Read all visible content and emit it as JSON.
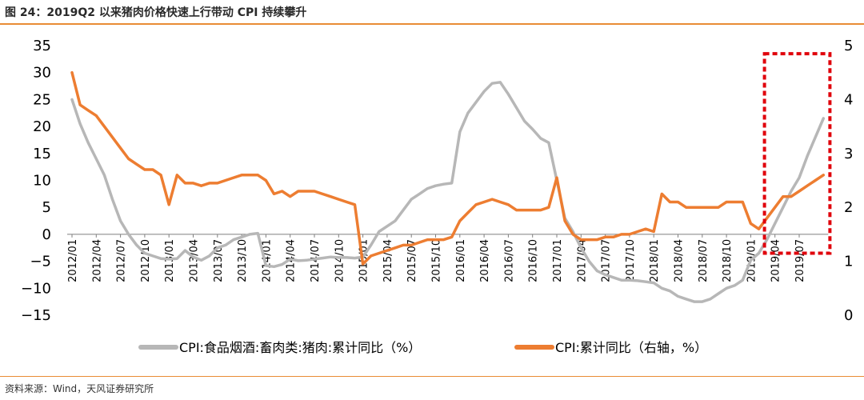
{
  "title": "图 24：2019Q2 以来猪肉价格快速上行带动 CPI 持续攀升",
  "source": "资料来源：Wind，天风证券研究所",
  "colors": {
    "pork": "#b7b7b7",
    "cpi": "#ed7d31",
    "highlight": "#e0000b",
    "rule": "#e98c35"
  },
  "chart_data": {
    "type": "line",
    "title": "",
    "x": [
      "2012/01",
      "2012/02",
      "2012/03",
      "2012/04",
      "2012/05",
      "2012/06",
      "2012/07",
      "2012/08",
      "2012/09",
      "2012/10",
      "2012/11",
      "2012/12",
      "2013/01",
      "2013/02",
      "2013/03",
      "2013/04",
      "2013/05",
      "2013/06",
      "2013/07",
      "2013/08",
      "2013/09",
      "2013/10",
      "2013/11",
      "2013/12",
      "2014/01",
      "2014/02",
      "2014/03",
      "2014/04",
      "2014/05",
      "2014/06",
      "2014/07",
      "2014/08",
      "2014/09",
      "2014/10",
      "2014/11",
      "2014/12",
      "2015/01",
      "2015/02",
      "2015/03",
      "2015/04",
      "2015/05",
      "2015/06",
      "2015/07",
      "2015/08",
      "2015/09",
      "2015/10",
      "2015/11",
      "2015/12",
      "2016/01",
      "2016/02",
      "2016/03",
      "2016/04",
      "2016/05",
      "2016/06",
      "2016/07",
      "2016/08",
      "2016/09",
      "2016/10",
      "2016/11",
      "2016/12",
      "2017/01",
      "2017/02",
      "2017/03",
      "2017/04",
      "2017/05",
      "2017/06",
      "2017/07",
      "2017/08",
      "2017/09",
      "2017/10",
      "2017/11",
      "2017/12",
      "2018/01",
      "2018/02",
      "2018/03",
      "2018/04",
      "2018/05",
      "2018/06",
      "2018/07",
      "2018/08",
      "2018/09",
      "2018/10",
      "2018/11",
      "2018/12",
      "2019/01",
      "2019/02",
      "2019/03",
      "2019/04",
      "2019/05",
      "2019/06",
      "2019/07",
      "2019/08",
      "2019/09",
      "2019/10"
    ],
    "x_tick_labels": [
      "2012/01",
      "2012/04",
      "2012/07",
      "2012/10",
      "2013/01",
      "2013/04",
      "2013/07",
      "2013/10",
      "2014/01",
      "2014/04",
      "2014/07",
      "2014/10",
      "2015/01",
      "2015/04",
      "2015/07",
      "2015/10",
      "2016/01",
      "2016/04",
      "2016/07",
      "2016/10",
      "2017/01",
      "2017/04",
      "2017/07",
      "2017/10",
      "2018/01",
      "2018/04",
      "2018/07",
      "2018/10",
      "2019/01",
      "2019/04",
      "2019/07"
    ],
    "series": [
      {
        "name": "CPI:食品烟酒:畜肉类:猪肉:累计同比（%）",
        "axis": "left",
        "values": [
          25,
          20.5,
          17,
          14,
          11,
          6.5,
          2.5,
          0,
          -2,
          -3.5,
          -4,
          -4.5,
          -4.6,
          -4.5,
          -3,
          -4.2,
          -4.8,
          -4,
          -2.5,
          -2,
          -1,
          -0.5,
          0,
          0.2,
          -5.8,
          -6,
          -5.6,
          -4.6,
          -4.9,
          -4.8,
          -4.6,
          -4.4,
          -4.2,
          -4.3,
          -4.3,
          -4.4,
          -4.2,
          -2,
          0.5,
          1.5,
          2.5,
          4.5,
          6.5,
          7.5,
          8.5,
          9,
          9.3,
          9.5,
          19,
          22.5,
          24.5,
          26.5,
          28,
          28.2,
          26,
          23.5,
          21,
          19.5,
          17.8,
          17,
          10,
          3,
          0.5,
          -2.5,
          -5,
          -6.8,
          -7.5,
          -8,
          -8.5,
          -8.5,
          -8.6,
          -8.8,
          -9,
          -10,
          -10.5,
          -11.5,
          -12,
          -12.5,
          -12.5,
          -12,
          -11,
          -10,
          -9.5,
          -8.5,
          -4.8,
          -3.5,
          -1,
          2,
          5,
          8,
          10.5,
          14.5,
          18,
          21.5
        ]
      },
      {
        "name": "CPI:累计同比（右轴，%）",
        "axis": "right",
        "values": [
          4.5,
          3.9,
          3.8,
          3.7,
          3.5,
          3.3,
          3.1,
          2.9,
          2.8,
          2.7,
          2.7,
          2.6,
          2.05,
          2.6,
          2.45,
          2.45,
          2.4,
          2.45,
          2.45,
          2.5,
          2.55,
          2.6,
          2.6,
          2.6,
          2.5,
          2.25,
          2.3,
          2.2,
          2.3,
          2.3,
          2.3,
          2.25,
          2.2,
          2.15,
          2.1,
          2.05,
          0.95,
          1.1,
          1.15,
          1.2,
          1.25,
          1.3,
          1.3,
          1.35,
          1.4,
          1.4,
          1.4,
          1.45,
          1.75,
          1.9,
          2.05,
          2.1,
          2.15,
          2.1,
          2.05,
          1.95,
          1.95,
          1.95,
          1.95,
          2.0,
          2.55,
          1.75,
          1.5,
          1.4,
          1.4,
          1.4,
          1.45,
          1.45,
          1.5,
          1.5,
          1.55,
          1.6,
          1.55,
          2.25,
          2.1,
          2.1,
          2.0,
          2.0,
          2.0,
          2.0,
          2.0,
          2.1,
          2.1,
          2.1,
          1.7,
          1.6,
          1.8,
          2.0,
          2.2,
          2.2,
          2.3,
          2.4,
          2.5,
          2.6
        ]
      }
    ],
    "left_axis": {
      "ylim": [
        -15,
        35
      ],
      "ticks": [
        35,
        30,
        25,
        20,
        15,
        10,
        5,
        0,
        -5,
        -10,
        -15
      ],
      "tick_labels": [
        "35",
        "30",
        "25",
        "20",
        "15",
        "10",
        "5",
        "0",
        "−5",
        "−10",
        "−15"
      ]
    },
    "right_axis": {
      "ylim": [
        0,
        5
      ],
      "ticks": [
        5,
        4,
        3,
        2,
        1,
        0
      ],
      "tick_labels": [
        "5",
        "4",
        "3",
        "2",
        "1",
        "0"
      ]
    },
    "highlight_box": {
      "x_from": "2019/03",
      "x_to": "2019/11",
      "y_from": -3.5,
      "y_to": 33.5
    },
    "grid": false,
    "legend_placement": "bottom"
  }
}
